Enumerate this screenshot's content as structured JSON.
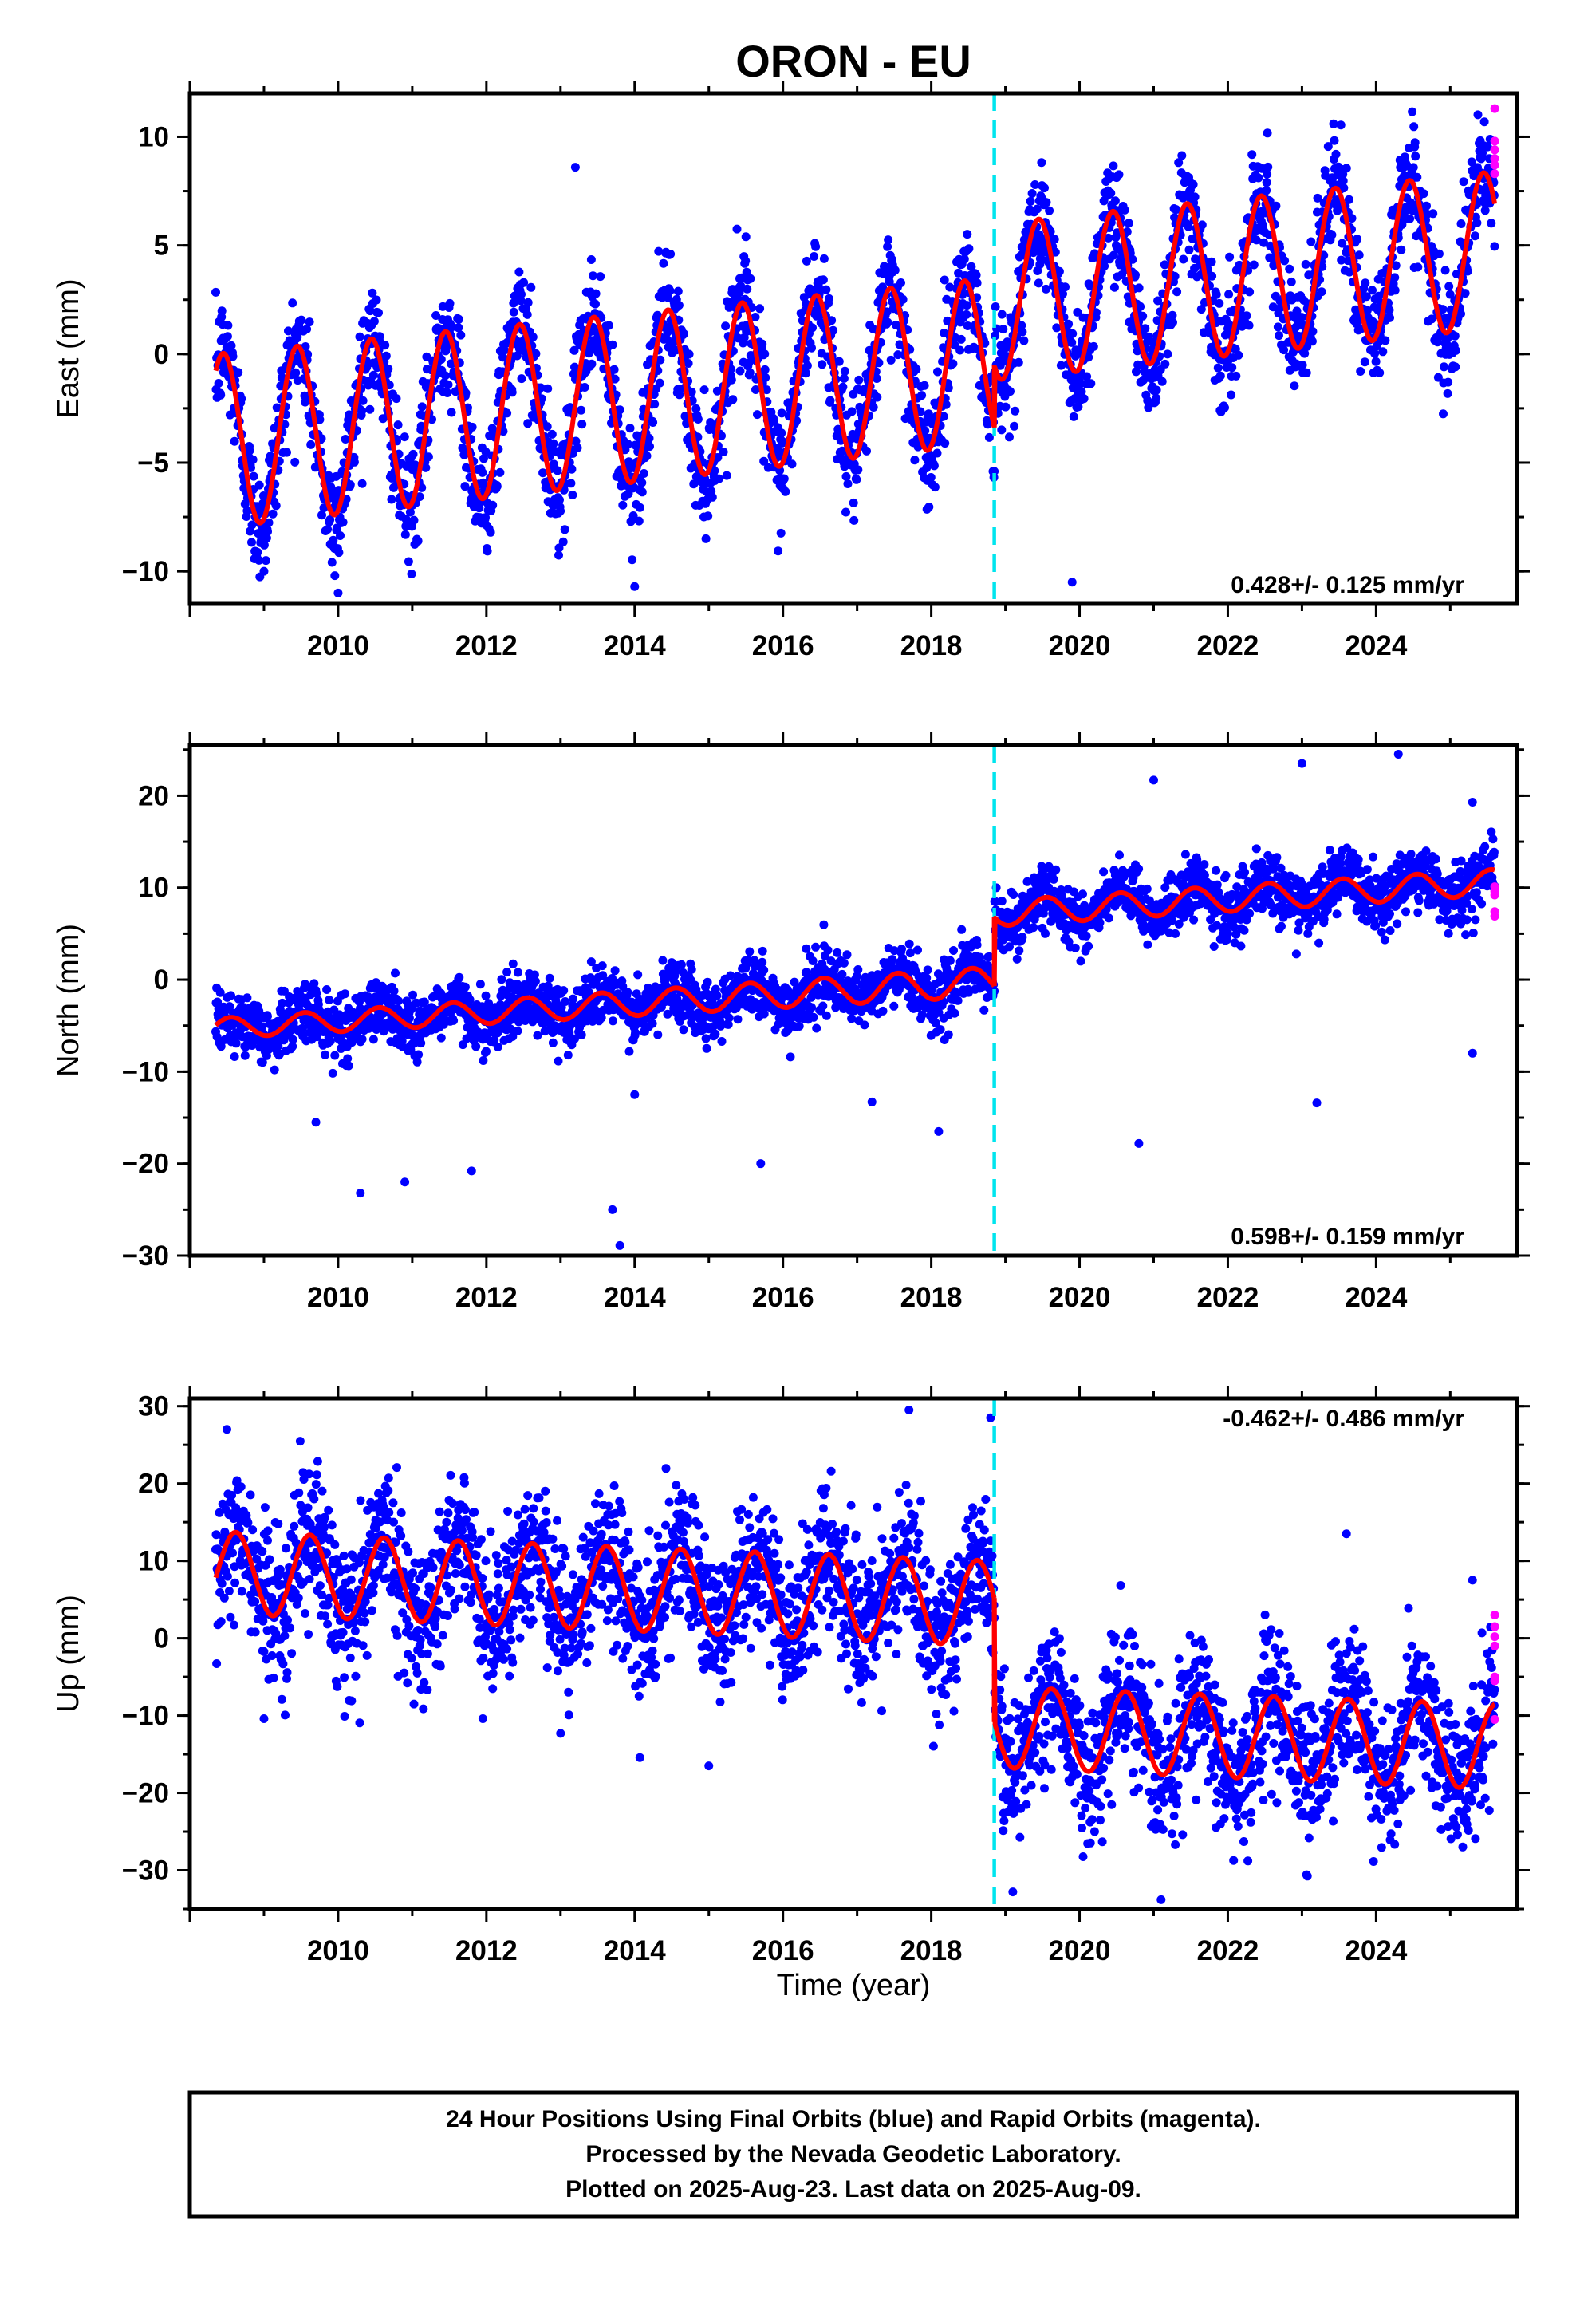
{
  "figure": {
    "title": "ORON - EU",
    "xlabel": "Time (year)",
    "caption": [
      "24 Hour Positions Using Final Orbits (blue) and Rapid Orbits (magenta).",
      "Processed by the Nevada Geodetic Laboratory.",
      "Plotted on 2025-Aug-23. Last data on 2025-Aug-09."
    ]
  },
  "colors": {
    "final_orbits": "#0000ff",
    "rapid_orbits": "#ff00ff",
    "model_fit": "#ff0000",
    "equipment_change": "#00e5ee",
    "frame": "#000000"
  },
  "chart_data": [
    {
      "type": "scatter",
      "id": "east",
      "ylabel": "East (mm)",
      "xlim": [
        2008.0,
        2025.9
      ],
      "ylim": [
        -11.5,
        12.0
      ],
      "xticks": [
        2010,
        2012,
        2014,
        2016,
        2018,
        2020,
        2022,
        2024
      ],
      "xticklabels": [
        "2010",
        "2012",
        "2014",
        "2016",
        "2018",
        "2020",
        "2022",
        "2024"
      ],
      "yticks": [
        -10,
        -5,
        0,
        5,
        10
      ],
      "yticklabels": [
        "−10",
        "−5",
        "0",
        "5",
        "10"
      ],
      "rate_text": "0.428+/- 0.125 mm/yr",
      "rate_position": "bottom-right",
      "offset_epoch": 2018.85,
      "model": {
        "description_visible": "red seasonal fit",
        "segments": [
          {
            "t0": 2008.35,
            "t1": 2018.85,
            "mean_start": -4.0,
            "mean_end": -0.3,
            "amp_start": 4.0,
            "amp_end": 3.8,
            "phase": 0.45
          },
          {
            "t0": 2018.85,
            "t1": 2025.6,
            "mean_start": 2.4,
            "mean_end": 4.8,
            "amp_start": 3.6,
            "amp_end": 3.6,
            "phase": 0.45
          }
        ]
      },
      "scatter_sd": 1.3,
      "outliers": [
        [
          2013.2,
          8.6
        ],
        [
          2014.0,
          -10.7
        ],
        [
          2019.9,
          -10.5
        ],
        [
          2015.5,
          5.4
        ],
        [
          2009.0,
          -10.0
        ],
        [
          2010.0,
          -11.0
        ]
      ],
      "rapid": {
        "t": 2025.6,
        "values": [
          11.3,
          9.8,
          9.4,
          9.0,
          8.7,
          8.3
        ]
      }
    },
    {
      "type": "scatter",
      "id": "north",
      "ylabel": "North (mm)",
      "xlim": [
        2008.0,
        2025.9
      ],
      "ylim": [
        -30.0,
        25.5
      ],
      "xticks": [
        2010,
        2012,
        2014,
        2016,
        2018,
        2020,
        2022,
        2024
      ],
      "xticklabels": [
        "2010",
        "2012",
        "2014",
        "2016",
        "2018",
        "2020",
        "2022",
        "2024"
      ],
      "yticks": [
        -30,
        -20,
        -10,
        0,
        10,
        20
      ],
      "yticklabels": [
        "−30",
        "−20",
        "−10",
        "0",
        "10",
        "20"
      ],
      "rate_text": "0.598+/- 0.159 mm/yr",
      "rate_position": "bottom-right",
      "offset_epoch": 2018.85,
      "model": {
        "description_visible": "red seasonal fit",
        "segments": [
          {
            "t0": 2008.35,
            "t1": 2018.85,
            "mean_start": -5.3,
            "mean_end": -0.2,
            "amp_start": 1.1,
            "amp_end": 1.6,
            "phase": 0.55
          },
          {
            "t0": 2018.85,
            "t1": 2025.6,
            "mean_start": 7.2,
            "mean_end": 10.6,
            "amp_start": 1.4,
            "amp_end": 1.4,
            "phase": 0.55
          }
        ]
      },
      "scatter_sd": 1.6,
      "outliers": [
        [
          2009.7,
          -15.5
        ],
        [
          2010.3,
          -23.2
        ],
        [
          2010.9,
          -22.0
        ],
        [
          2011.8,
          -20.8
        ],
        [
          2013.7,
          -25.0
        ],
        [
          2013.8,
          -28.9
        ],
        [
          2015.7,
          -20.0
        ],
        [
          2018.1,
          -16.5
        ],
        [
          2020.8,
          -17.8
        ],
        [
          2023.0,
          23.5
        ],
        [
          2024.3,
          24.5
        ],
        [
          2021.0,
          21.7
        ],
        [
          2023.2,
          -13.4
        ],
        [
          2014.0,
          -12.5
        ],
        [
          2016.1,
          -8.4
        ],
        [
          2017.2,
          -13.3
        ],
        [
          2025.3,
          -8.0
        ],
        [
          2025.3,
          19.3
        ]
      ],
      "rapid": {
        "t": 2025.6,
        "values": [
          10.1,
          9.6,
          9.2,
          7.4,
          6.9
        ]
      }
    },
    {
      "type": "scatter",
      "id": "up",
      "ylabel": "Up (mm)",
      "xlim": [
        2008.0,
        2025.9
      ],
      "ylim": [
        -35.0,
        31.0
      ],
      "xticks": [
        2010,
        2012,
        2014,
        2016,
        2018,
        2020,
        2022,
        2024
      ],
      "xticklabels": [
        "2010",
        "2012",
        "2014",
        "2016",
        "2018",
        "2020",
        "2022",
        "2024"
      ],
      "yticks": [
        -30,
        -20,
        -10,
        0,
        10,
        20,
        30
      ],
      "yticklabels": [
        "−30",
        "−20",
        "−10",
        "0",
        "10",
        "20",
        "30"
      ],
      "rate_text": "-0.462+/- 0.486 mm/yr",
      "rate_position": "top-right",
      "offset_epoch": 2018.85,
      "model": {
        "description_visible": "red seasonal fit",
        "segments": [
          {
            "t0": 2008.35,
            "t1": 2018.85,
            "mean_start": 8.5,
            "mean_end": 4.5,
            "amp_start": 5.3,
            "amp_end": 5.5,
            "phase": 0.62
          },
          {
            "t0": 2018.85,
            "t1": 2025.6,
            "mean_start": -11.5,
            "mean_end": -14.0,
            "amp_start": 5.2,
            "amp_end": 5.5,
            "phase": 0.62
          }
        ]
      },
      "scatter_sd": 4.6,
      "outliers": [
        [
          2008.5,
          27.0
        ],
        [
          2017.7,
          29.5
        ],
        [
          2018.8,
          28.5
        ],
        [
          2019.1,
          -32.8
        ],
        [
          2021.1,
          -33.8
        ],
        [
          2023.6,
          13.5
        ],
        [
          2025.3,
          7.5
        ],
        [
          2015.0,
          -16.5
        ],
        [
          2013.0,
          -12.3
        ],
        [
          2009.0,
          -10.4
        ]
      ],
      "rapid": {
        "t": 2025.6,
        "values": [
          3.0,
          1.5,
          0.2,
          -1.0,
          -5.0,
          -5.5,
          -10.5
        ]
      }
    }
  ]
}
